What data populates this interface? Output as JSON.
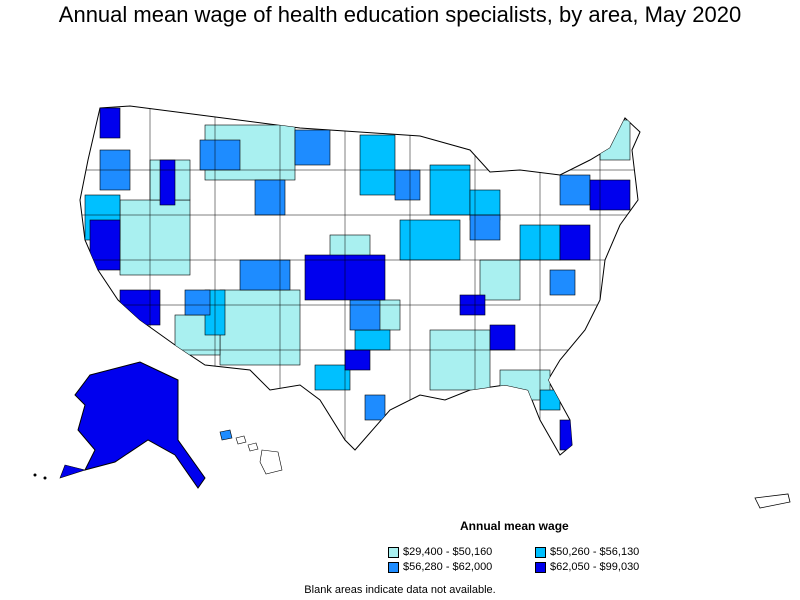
{
  "title": "Annual mean wage of health education specialists, by area, May 2020",
  "legend": {
    "title": "Annual mean wage",
    "items": [
      {
        "label": "$29,400 - $50,160",
        "color": "#a9f0f0"
      },
      {
        "label": "$50,260 - $56,130",
        "color": "#00c0ff"
      },
      {
        "label": "$56,280 - $62,000",
        "color": "#1e8cff"
      },
      {
        "label": "$62,050 - $99,030",
        "color": "#0000ee"
      }
    ]
  },
  "note": "Blank areas indicate data not available.",
  "colors": {
    "none": "#ffffff",
    "border": "#000000"
  }
}
